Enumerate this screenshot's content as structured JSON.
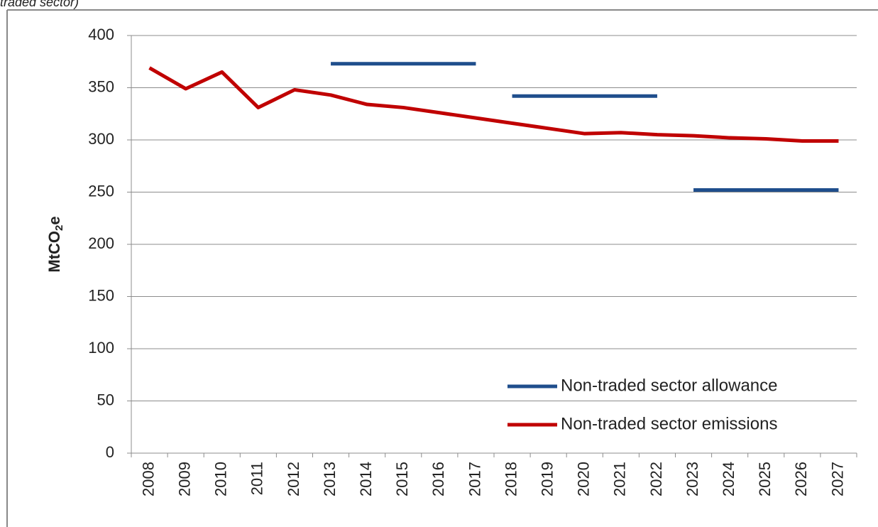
{
  "chart_data": {
    "type": "line",
    "title": "traded sector)",
    "y_label": "MtCO2e",
    "categories": [
      "2008",
      "2009",
      "2010",
      "2011",
      "2012",
      "2013",
      "2014",
      "2015",
      "2016",
      "2017",
      "2018",
      "2019",
      "2020",
      "2021",
      "2022",
      "2023",
      "2024",
      "2025",
      "2026",
      "2027"
    ],
    "series": [
      {
        "name": "Non-traded sector allowance",
        "color": "#1f4e8c",
        "connect_changes": false,
        "values": [
          null,
          null,
          null,
          null,
          null,
          373,
          373,
          373,
          373,
          373,
          342,
          342,
          342,
          342,
          342,
          252,
          252,
          252,
          252,
          252
        ]
      },
      {
        "name": "Non-traded sector emissions",
        "color": "#c00000",
        "connect_changes": true,
        "values": [
          369,
          349,
          365,
          331,
          348,
          343,
          334,
          331,
          326,
          321,
          316,
          311,
          306,
          307,
          305,
          304,
          302,
          301,
          299,
          299
        ]
      }
    ],
    "ylim": [
      0,
      400
    ],
    "yticks": [
      0,
      50,
      100,
      150,
      200,
      250,
      300,
      350,
      400
    ],
    "grid": true,
    "legend": "lower right"
  }
}
